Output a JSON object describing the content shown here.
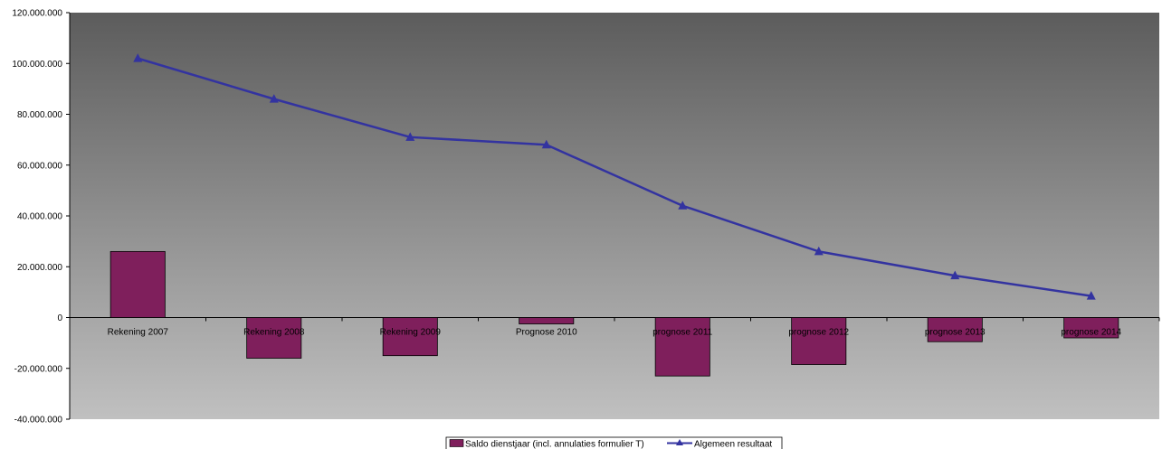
{
  "chart_data": {
    "type": "bar+line",
    "categories": [
      "Rekening 2007",
      "Rekening 2008",
      "Rekening 2009",
      "Prognose 2010",
      "prognose 2011",
      "prognose 2012",
      "prognose 2013",
      "prognose 2014"
    ],
    "series": [
      {
        "name": "Saldo dienstjaar (incl. annulaties formulier T)",
        "type": "bar",
        "color": "#7f1f5c",
        "values": [
          26000000,
          -16000000,
          -15000000,
          -2500000,
          -23000000,
          -18500000,
          -9500000,
          -8000000
        ]
      },
      {
        "name": "Algemeen resultaat",
        "type": "line",
        "color": "#3333a0",
        "marker": "triangle",
        "values": [
          102000000,
          86000000,
          71000000,
          68000000,
          44000000,
          26000000,
          16500000,
          8500000
        ]
      }
    ],
    "ylim": [
      -40000000,
      120000000
    ],
    "yticks": [
      "120.000.000",
      "100.000.000",
      "80.000.000",
      "60.000.000",
      "40.000.000",
      "20.000.000",
      "0",
      "-20.000.000",
      "-40.000.000"
    ],
    "ytick_values": [
      120000000,
      100000000,
      80000000,
      60000000,
      40000000,
      20000000,
      0,
      -20000000,
      -40000000
    ],
    "background": "vertical gradient dark gray to light gray",
    "legend_position": "bottom-center",
    "grid": false
  }
}
